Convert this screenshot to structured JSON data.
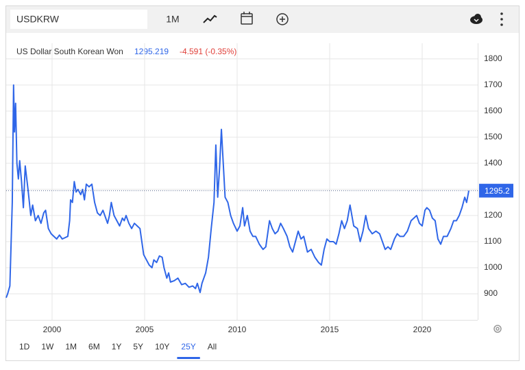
{
  "ui": {
    "symbol": "USDKRW",
    "interval": "1M",
    "range_buttons": [
      "1D",
      "1W",
      "1M",
      "6M",
      "1Y",
      "5Y",
      "10Y",
      "25Y",
      "All"
    ],
    "active_range": 7
  },
  "chart_data": {
    "type": "line",
    "title": "US Dollar South Korean Won",
    "price": "1295.219",
    "change": "-4.591 (-0.35%)",
    "current_value": 1295.219,
    "current_label": "1295.2",
    "xlim": [
      1997.52,
      2023.0
    ],
    "xticks": [
      2000,
      2005,
      2010,
      2015,
      2020
    ],
    "ylim": [
      800,
      1860
    ],
    "yticks": [
      900,
      1000,
      1100,
      1200,
      1300,
      1400,
      1500,
      1600,
      1700,
      1800
    ],
    "grid": true,
    "y_axis_side": "right",
    "series": [
      {
        "name": "USDKRW",
        "color": "#2f66e8",
        "x": [
          1997.52,
          1997.6,
          1997.72,
          1997.85,
          1997.92,
          1997.97,
          1998.03,
          1998.1,
          1998.18,
          1998.25,
          1998.35,
          1998.45,
          1998.55,
          1998.7,
          1998.85,
          1998.95,
          1999.1,
          1999.25,
          1999.4,
          1999.55,
          1999.65,
          1999.8,
          1999.95,
          2000.1,
          2000.25,
          2000.4,
          2000.55,
          2000.7,
          2000.85,
          2000.95,
          2001.0,
          2001.1,
          2001.2,
          2001.3,
          2001.4,
          2001.55,
          2001.65,
          2001.75,
          2001.85,
          2002.0,
          2002.15,
          2002.3,
          2002.45,
          2002.6,
          2002.75,
          2002.9,
          2003.0,
          2003.1,
          2003.2,
          2003.35,
          2003.5,
          2003.65,
          2003.8,
          2003.9,
          2004.0,
          2004.15,
          2004.3,
          2004.45,
          2004.6,
          2004.75,
          2004.85,
          2004.95,
          2005.1,
          2005.25,
          2005.4,
          2005.5,
          2005.65,
          2005.8,
          2005.95,
          2006.05,
          2006.2,
          2006.3,
          2006.4,
          2006.6,
          2006.8,
          2007.0,
          2007.2,
          2007.4,
          2007.6,
          2007.75,
          2007.85,
          2008.0,
          2008.1,
          2008.3,
          2008.45,
          2008.6,
          2008.75,
          2008.85,
          2008.95,
          2009.05,
          2009.15,
          2009.25,
          2009.35,
          2009.5,
          2009.65,
          2009.8,
          2010.0,
          2010.15,
          2010.3,
          2010.4,
          2010.55,
          2010.7,
          2010.85,
          2011.0,
          2011.2,
          2011.4,
          2011.55,
          2011.75,
          2011.9,
          2012.05,
          2012.2,
          2012.35,
          2012.5,
          2012.7,
          2012.85,
          2013.0,
          2013.15,
          2013.3,
          2013.45,
          2013.6,
          2013.8,
          2014.0,
          2014.2,
          2014.4,
          2014.55,
          2014.7,
          2014.85,
          2015.0,
          2015.2,
          2015.35,
          2015.5,
          2015.65,
          2015.8,
          2015.95,
          2016.1,
          2016.3,
          2016.5,
          2016.65,
          2016.8,
          2016.95,
          2017.1,
          2017.3,
          2017.5,
          2017.7,
          2017.85,
          2018.0,
          2018.15,
          2018.3,
          2018.5,
          2018.65,
          2018.8,
          2019.0,
          2019.2,
          2019.4,
          2019.55,
          2019.7,
          2019.85,
          2020.0,
          2020.15,
          2020.25,
          2020.4,
          2020.55,
          2020.7,
          2020.85,
          2021.0,
          2021.15,
          2021.35,
          2021.55,
          2021.7,
          2021.85,
          2022.0,
          2022.15,
          2022.3,
          2022.4,
          2022.52
        ],
        "values": [
          885,
          900,
          930,
          1250,
          1700,
          1520,
          1630,
          1400,
          1340,
          1410,
          1330,
          1230,
          1390,
          1300,
          1200,
          1240,
          1180,
          1200,
          1170,
          1210,
          1220,
          1150,
          1130,
          1120,
          1110,
          1125,
          1110,
          1115,
          1120,
          1180,
          1260,
          1250,
          1330,
          1290,
          1300,
          1280,
          1300,
          1260,
          1320,
          1310,
          1320,
          1250,
          1210,
          1200,
          1220,
          1190,
          1170,
          1200,
          1250,
          1200,
          1180,
          1160,
          1190,
          1180,
          1200,
          1170,
          1150,
          1170,
          1160,
          1150,
          1100,
          1050,
          1030,
          1010,
          1000,
          1030,
          1020,
          1045,
          1040,
          1000,
          960,
          980,
          945,
          950,
          960,
          935,
          940,
          925,
          930,
          920,
          940,
          905,
          940,
          980,
          1040,
          1150,
          1250,
          1470,
          1270,
          1380,
          1530,
          1400,
          1270,
          1250,
          1200,
          1170,
          1140,
          1160,
          1230,
          1160,
          1200,
          1140,
          1120,
          1120,
          1090,
          1070,
          1080,
          1180,
          1150,
          1130,
          1140,
          1170,
          1150,
          1120,
          1080,
          1060,
          1100,
          1140,
          1110,
          1120,
          1060,
          1070,
          1040,
          1020,
          1010,
          1070,
          1110,
          1100,
          1100,
          1090,
          1130,
          1180,
          1150,
          1180,
          1240,
          1160,
          1150,
          1100,
          1140,
          1200,
          1150,
          1130,
          1140,
          1130,
          1100,
          1070,
          1080,
          1070,
          1110,
          1130,
          1120,
          1120,
          1140,
          1180,
          1190,
          1200,
          1170,
          1160,
          1220,
          1230,
          1220,
          1190,
          1180,
          1110,
          1090,
          1120,
          1120,
          1150,
          1180,
          1180,
          1200,
          1230,
          1270,
          1250,
          1295.219
        ]
      }
    ]
  }
}
